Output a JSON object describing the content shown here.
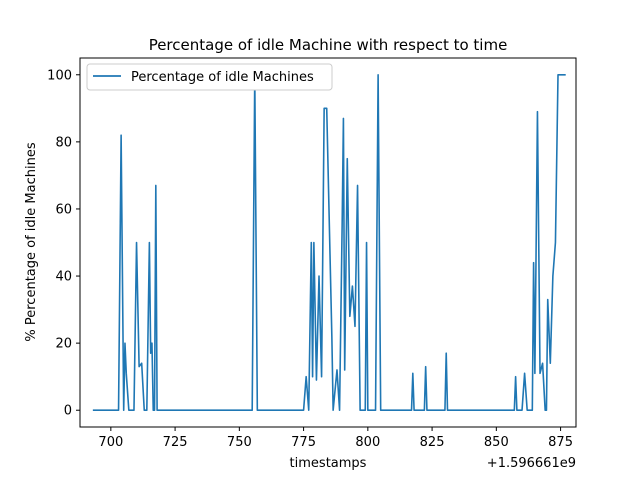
{
  "chart_data": {
    "type": "line",
    "title": "Percentage of idle Machine with respect to time",
    "xlabel": "timestamps",
    "ylabel": "% Percentage of idle Machines",
    "x_offset_label": "+1.596661e9",
    "xlim": [
      688,
      881
    ],
    "ylim": [
      -5,
      105
    ],
    "xticks": [
      700,
      725,
      750,
      775,
      800,
      825,
      850,
      875
    ],
    "yticks": [
      0,
      20,
      40,
      60,
      80,
      100
    ],
    "legend_position": "top-left",
    "series": [
      {
        "name": "Percentage of idle Machines",
        "color": "#1f77b4",
        "points": [
          [
            693,
            0
          ],
          [
            703,
            0
          ],
          [
            704,
            82
          ],
          [
            705,
            0
          ],
          [
            705.5,
            20
          ],
          [
            706,
            11
          ],
          [
            707,
            0
          ],
          [
            709,
            0
          ],
          [
            710,
            50
          ],
          [
            711,
            13
          ],
          [
            712,
            14
          ],
          [
            713,
            0
          ],
          [
            714,
            0
          ],
          [
            715,
            50
          ],
          [
            715.5,
            17
          ],
          [
            716,
            20
          ],
          [
            716.5,
            0
          ],
          [
            717,
            0
          ],
          [
            717.5,
            67
          ],
          [
            718,
            0
          ],
          [
            755,
            0
          ],
          [
            756,
            100
          ],
          [
            757,
            0
          ],
          [
            775,
            0
          ],
          [
            776,
            10
          ],
          [
            777,
            0
          ],
          [
            778,
            50
          ],
          [
            778.5,
            10
          ],
          [
            779,
            50
          ],
          [
            780,
            9
          ],
          [
            781,
            40
          ],
          [
            782,
            10
          ],
          [
            783,
            90
          ],
          [
            784,
            90
          ],
          [
            786,
            22
          ],
          [
            786.5,
            0
          ],
          [
            788,
            12
          ],
          [
            789,
            0
          ],
          [
            790,
            55
          ],
          [
            790.5,
            87
          ],
          [
            791,
            12
          ],
          [
            792,
            75
          ],
          [
            793,
            28
          ],
          [
            794,
            37
          ],
          [
            795,
            25
          ],
          [
            796,
            67
          ],
          [
            797,
            0
          ],
          [
            799,
            0
          ],
          [
            799.5,
            50
          ],
          [
            800,
            0
          ],
          [
            803,
            0
          ],
          [
            804,
            100
          ],
          [
            805,
            0
          ],
          [
            817,
            0
          ],
          [
            817.5,
            11
          ],
          [
            818,
            0
          ],
          [
            822,
            0
          ],
          [
            822.5,
            13
          ],
          [
            823,
            0
          ],
          [
            830,
            0
          ],
          [
            830.5,
            17
          ],
          [
            831,
            0
          ],
          [
            857,
            0
          ],
          [
            857.5,
            10
          ],
          [
            858,
            0
          ],
          [
            860,
            0
          ],
          [
            861,
            11
          ],
          [
            862,
            0
          ],
          [
            864,
            0
          ],
          [
            864.5,
            44
          ],
          [
            865,
            11
          ],
          [
            866,
            89
          ],
          [
            867,
            11
          ],
          [
            868,
            14
          ],
          [
            869,
            0
          ],
          [
            869.5,
            0
          ],
          [
            870,
            33
          ],
          [
            871,
            14
          ],
          [
            872,
            40
          ],
          [
            873,
            50
          ],
          [
            874,
            100
          ],
          [
            877,
            100
          ]
        ]
      }
    ]
  }
}
